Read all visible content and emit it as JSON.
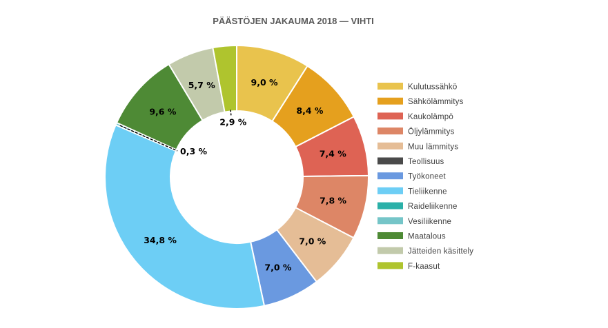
{
  "chart_data": {
    "type": "pie",
    "variant": "donut",
    "title": "PÄÄSTÖJEN JAKAUMA 2018 — VIHTI",
    "legend_position": "right",
    "slices": [
      {
        "name": "Kulutussähkö",
        "value": 9.0,
        "label": "9,0 %",
        "color": "#E9C34D"
      },
      {
        "name": "Sähkölämmitys",
        "value": 8.4,
        "label": "8,4 %",
        "color": "#E5A01E"
      },
      {
        "name": "Kaukolämpö",
        "value": 7.4,
        "label": "7,4 %",
        "color": "#DE6354"
      },
      {
        "name": "Öljylämmitys",
        "value": 7.8,
        "label": "7,8 %",
        "color": "#DD8666"
      },
      {
        "name": "Muu lämmitys",
        "value": 7.0,
        "label": "7,0 %",
        "color": "#E5BD96"
      },
      {
        "name": "Teollisuus",
        "value": 0.0,
        "label": "",
        "color": "#4A4A4A"
      },
      {
        "name": "Työkoneet",
        "value": 7.0,
        "label": "7,0 %",
        "color": "#6A99E0"
      },
      {
        "name": "Tieliikenne",
        "value": 34.8,
        "label": "34,8 %",
        "color": "#6DCEF5"
      },
      {
        "name": "Raideliikenne",
        "value": 0.0,
        "label": "",
        "color": "#2BB0A8"
      },
      {
        "name": "Vesiliikenne",
        "value": 0.3,
        "label": "0,3 %",
        "color": "#75C5C8"
      },
      {
        "name": "Maatalous",
        "value": 9.6,
        "label": "9,6 %",
        "color": "#4E8A35"
      },
      {
        "name": "Jätteiden käsittely",
        "value": 5.7,
        "label": "5,7 %",
        "color": "#C2CAAB"
      },
      {
        "name": "F-kaasut",
        "value": 2.9,
        "label": "2,9 %",
        "color": "#AFC42E"
      }
    ]
  }
}
